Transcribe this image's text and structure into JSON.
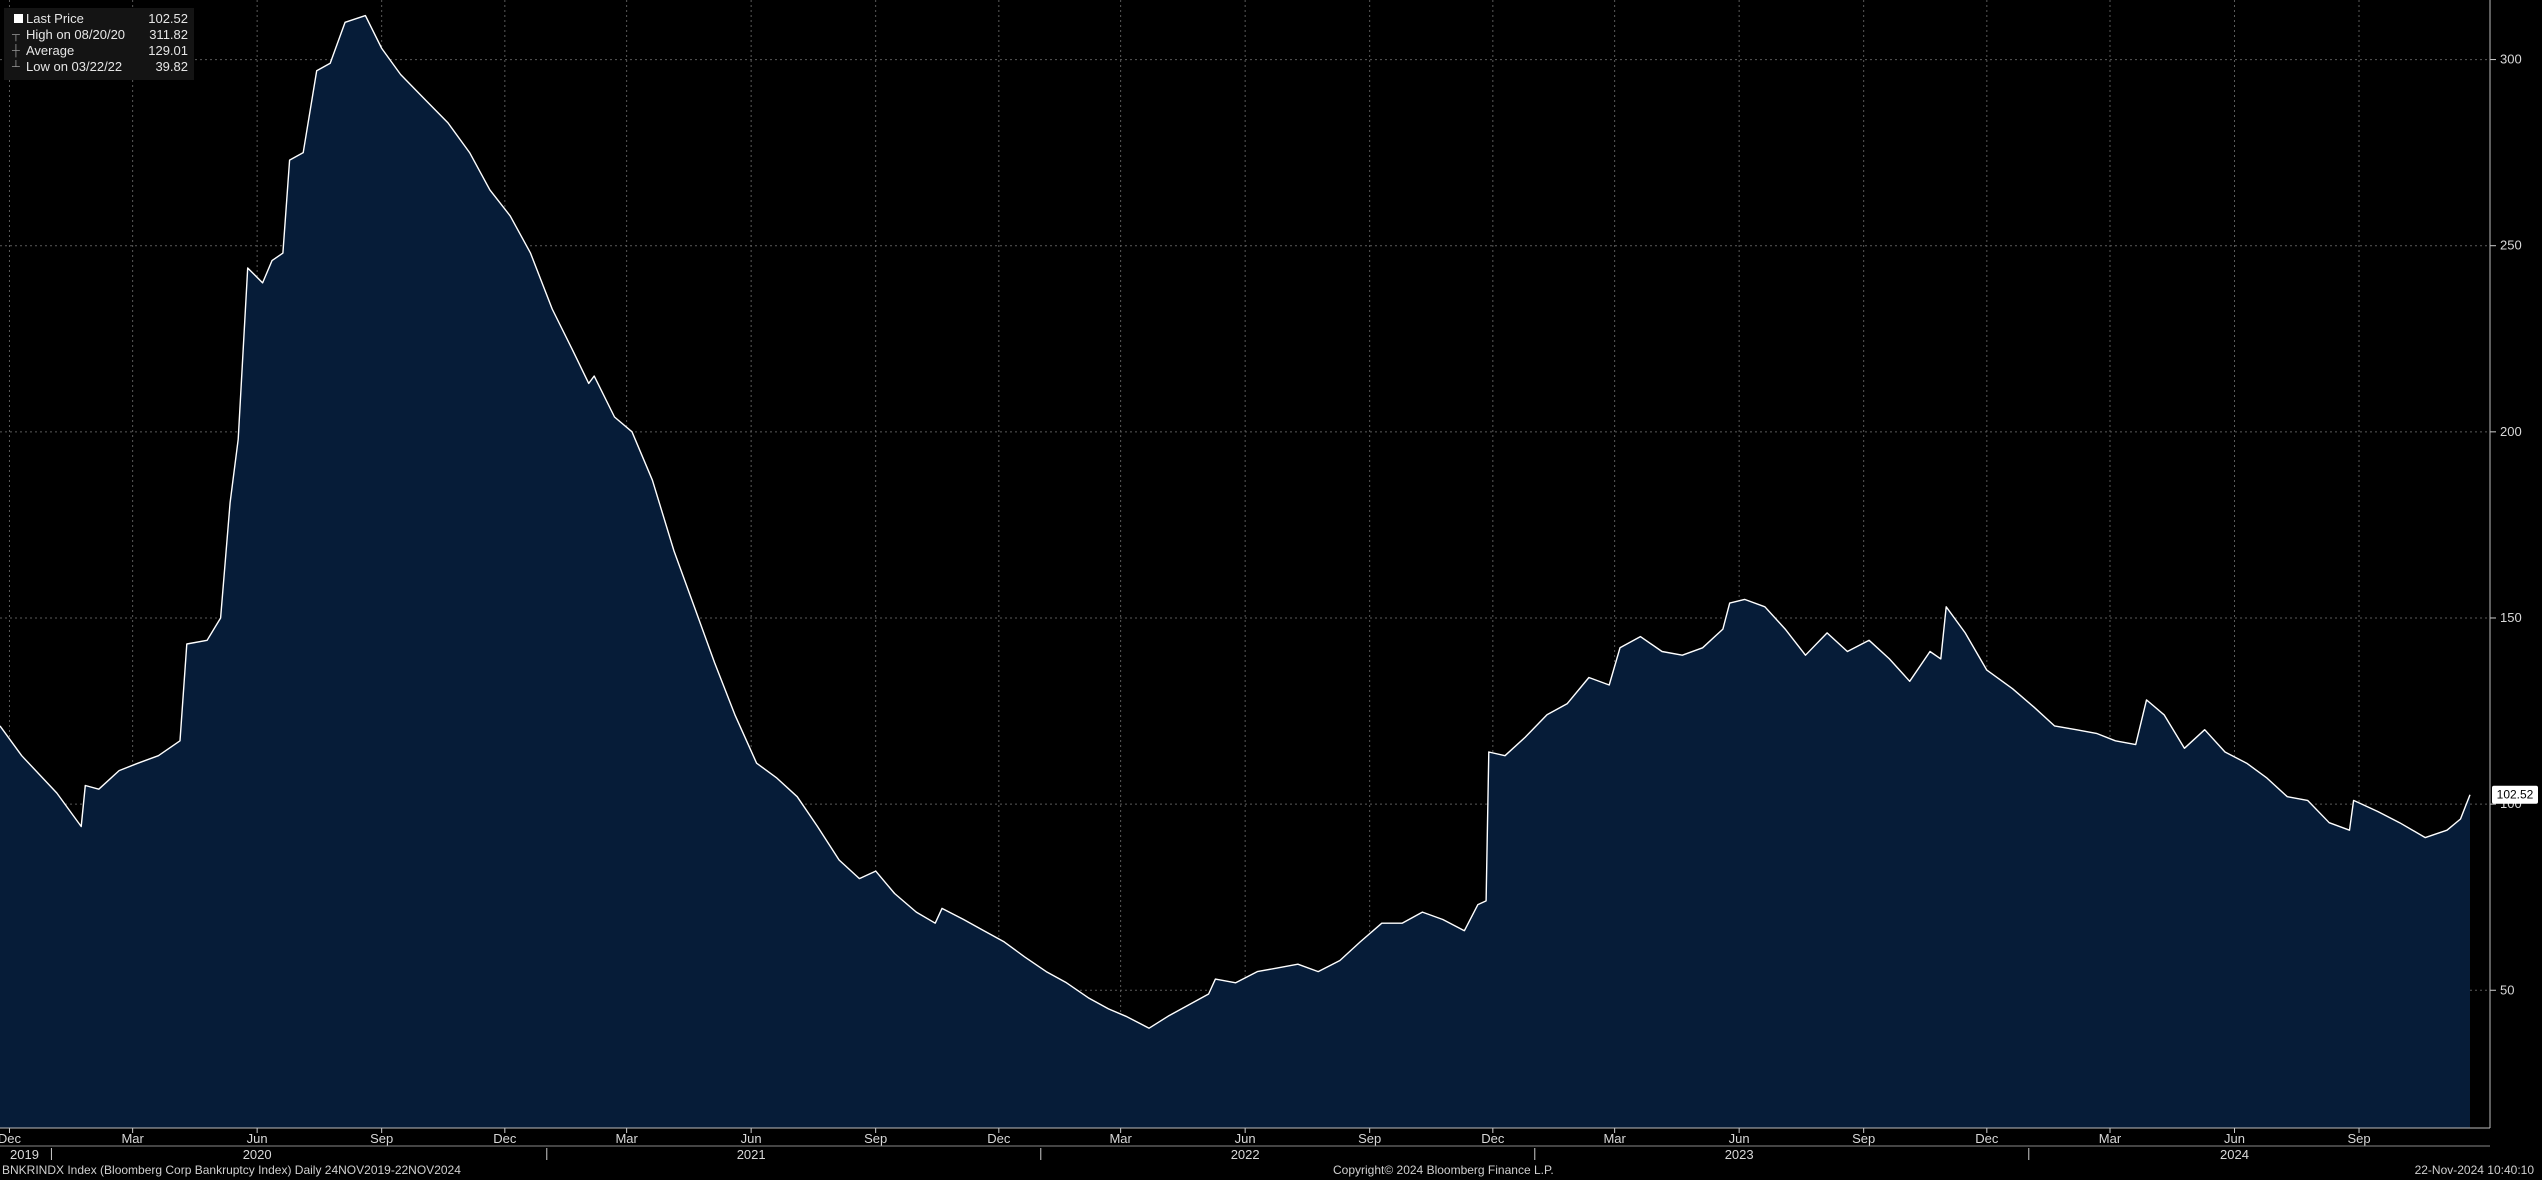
{
  "legend": {
    "last_label": "Last Price",
    "last_value": "102.52",
    "high_label": "High on 08/20/20",
    "high_value": "311.82",
    "avg_label": "Average",
    "avg_value": "129.01",
    "low_label": "Low on 03/22/22",
    "low_value": "39.82"
  },
  "footer": {
    "left": "BNKRINDX Index (Bloomberg Corp Bankruptcy Index)  Daily 24NOV2019-22NOV2024",
    "center": "Copyright© 2024 Bloomberg Finance L.P.",
    "right": "22-Nov-2024 10:40:10"
  },
  "colors": {
    "background": "#000000",
    "fill": "#061c38",
    "line": "#ffffff",
    "grid": "#5a5a5a"
  },
  "chart_data": {
    "type": "area",
    "title": "",
    "xlabel": "",
    "ylabel": "",
    "ylim": [
      13,
      316
    ],
    "y_axis_position": "right",
    "yticks": [
      50,
      100,
      150,
      200,
      250,
      300
    ],
    "last_value_label": "102.52",
    "grid": true,
    "legend_position": "top-left",
    "x_range": [
      "2019-11-24",
      "2024-11-22"
    ],
    "month_ticks": [
      {
        "date": "2019-12-01",
        "label": "Dec"
      },
      {
        "date": "2020-03-01",
        "label": "Mar"
      },
      {
        "date": "2020-06-01",
        "label": "Jun"
      },
      {
        "date": "2020-09-01",
        "label": "Sep"
      },
      {
        "date": "2020-12-01",
        "label": "Dec"
      },
      {
        "date": "2021-03-01",
        "label": "Mar"
      },
      {
        "date": "2021-06-01",
        "label": "Jun"
      },
      {
        "date": "2021-09-01",
        "label": "Sep"
      },
      {
        "date": "2021-12-01",
        "label": "Dec"
      },
      {
        "date": "2022-03-01",
        "label": "Mar"
      },
      {
        "date": "2022-06-01",
        "label": "Jun"
      },
      {
        "date": "2022-09-01",
        "label": "Sep"
      },
      {
        "date": "2022-12-01",
        "label": "Dec"
      },
      {
        "date": "2023-03-01",
        "label": "Mar"
      },
      {
        "date": "2023-06-01",
        "label": "Jun"
      },
      {
        "date": "2023-09-01",
        "label": "Sep"
      },
      {
        "date": "2023-12-01",
        "label": "Dec"
      },
      {
        "date": "2024-03-01",
        "label": "Mar"
      },
      {
        "date": "2024-06-01",
        "label": "Jun"
      },
      {
        "date": "2024-09-01",
        "label": "Sep"
      }
    ],
    "year_ticks": [
      {
        "date": "2019-12-01",
        "label": "2019"
      },
      {
        "date": "2020-06-01",
        "label": "2020"
      },
      {
        "date": "2021-06-01",
        "label": "2021"
      },
      {
        "date": "2022-06-01",
        "label": "2022"
      },
      {
        "date": "2023-06-01",
        "label": "2023"
      },
      {
        "date": "2024-06-01",
        "label": "2024"
      }
    ],
    "series": [
      {
        "name": "Last Price",
        "points": [
          [
            "2019-11-24",
            121
          ],
          [
            "2019-12-10",
            113
          ],
          [
            "2020-01-05",
            103
          ],
          [
            "2020-01-23",
            94
          ],
          [
            "2020-01-26",
            105
          ],
          [
            "2020-02-05",
            104
          ],
          [
            "2020-02-20",
            109
          ],
          [
            "2020-03-05",
            111
          ],
          [
            "2020-03-20",
            113
          ],
          [
            "2020-04-05",
            117
          ],
          [
            "2020-04-10",
            143
          ],
          [
            "2020-04-25",
            144
          ],
          [
            "2020-05-05",
            150
          ],
          [
            "2020-05-12",
            181
          ],
          [
            "2020-05-18",
            198
          ],
          [
            "2020-05-25",
            244
          ],
          [
            "2020-06-05",
            240
          ],
          [
            "2020-06-12",
            246
          ],
          [
            "2020-06-20",
            248
          ],
          [
            "2020-06-25",
            273
          ],
          [
            "2020-07-05",
            275
          ],
          [
            "2020-07-15",
            297
          ],
          [
            "2020-07-25",
            299
          ],
          [
            "2020-08-05",
            310
          ],
          [
            "2020-08-20",
            311.82
          ],
          [
            "2020-09-01",
            303
          ],
          [
            "2020-09-15",
            296
          ],
          [
            "2020-10-01",
            290
          ],
          [
            "2020-10-20",
            283
          ],
          [
            "2020-11-05",
            275
          ],
          [
            "2020-11-20",
            265
          ],
          [
            "2020-12-05",
            258
          ],
          [
            "2020-12-20",
            248
          ],
          [
            "2021-01-05",
            233
          ],
          [
            "2021-01-20",
            222
          ],
          [
            "2021-02-01",
            213
          ],
          [
            "2021-02-05",
            215
          ],
          [
            "2021-02-20",
            204
          ],
          [
            "2021-03-05",
            200
          ],
          [
            "2021-03-20",
            187
          ],
          [
            "2021-04-05",
            168
          ],
          [
            "2021-04-20",
            153
          ],
          [
            "2021-05-05",
            138
          ],
          [
            "2021-05-20",
            124
          ],
          [
            "2021-06-05",
            111
          ],
          [
            "2021-06-20",
            107
          ],
          [
            "2021-07-05",
            102
          ],
          [
            "2021-07-20",
            94
          ],
          [
            "2021-08-05",
            85
          ],
          [
            "2021-08-20",
            80
          ],
          [
            "2021-09-01",
            82
          ],
          [
            "2021-09-15",
            76
          ],
          [
            "2021-10-01",
            71
          ],
          [
            "2021-10-15",
            68
          ],
          [
            "2021-10-20",
            72
          ],
          [
            "2021-11-05",
            69
          ],
          [
            "2021-11-20",
            66
          ],
          [
            "2021-12-05",
            63
          ],
          [
            "2021-12-20",
            59
          ],
          [
            "2022-01-05",
            55
          ],
          [
            "2022-01-20",
            52
          ],
          [
            "2022-02-05",
            48
          ],
          [
            "2022-02-20",
            45
          ],
          [
            "2022-03-05",
            43
          ],
          [
            "2022-03-22",
            39.82
          ],
          [
            "2022-04-05",
            43
          ],
          [
            "2022-04-20",
            46
          ],
          [
            "2022-05-05",
            49
          ],
          [
            "2022-05-10",
            53
          ],
          [
            "2022-05-25",
            52
          ],
          [
            "2022-06-10",
            55
          ],
          [
            "2022-06-25",
            56
          ],
          [
            "2022-07-10",
            57
          ],
          [
            "2022-07-25",
            55
          ],
          [
            "2022-08-10",
            58
          ],
          [
            "2022-08-25",
            63
          ],
          [
            "2022-09-10",
            68
          ],
          [
            "2022-09-25",
            68
          ],
          [
            "2022-10-10",
            71
          ],
          [
            "2022-10-25",
            69
          ],
          [
            "2022-11-10",
            66
          ],
          [
            "2022-11-20",
            73
          ],
          [
            "2022-11-26",
            74
          ],
          [
            "2022-11-28",
            114
          ],
          [
            "2022-12-10",
            113
          ],
          [
            "2022-12-25",
            118
          ],
          [
            "2023-01-10",
            124
          ],
          [
            "2023-01-25",
            127
          ],
          [
            "2023-02-10",
            134
          ],
          [
            "2023-02-25",
            132
          ],
          [
            "2023-03-05",
            142
          ],
          [
            "2023-03-20",
            145
          ],
          [
            "2023-04-05",
            141
          ],
          [
            "2023-04-20",
            140
          ],
          [
            "2023-05-05",
            142
          ],
          [
            "2023-05-20",
            147
          ],
          [
            "2023-05-25",
            154
          ],
          [
            "2023-06-05",
            155
          ],
          [
            "2023-06-20",
            153
          ],
          [
            "2023-07-05",
            147
          ],
          [
            "2023-07-20",
            140
          ],
          [
            "2023-08-05",
            146
          ],
          [
            "2023-08-20",
            141
          ],
          [
            "2023-09-05",
            144
          ],
          [
            "2023-09-20",
            139
          ],
          [
            "2023-10-05",
            133
          ],
          [
            "2023-10-20",
            141
          ],
          [
            "2023-10-28",
            139
          ],
          [
            "2023-11-01",
            153
          ],
          [
            "2023-11-15",
            146
          ],
          [
            "2023-12-01",
            136
          ],
          [
            "2023-12-20",
            131
          ],
          [
            "2024-01-05",
            126
          ],
          [
            "2024-01-20",
            121
          ],
          [
            "2024-02-05",
            120
          ],
          [
            "2024-02-20",
            119
          ],
          [
            "2024-03-05",
            117
          ],
          [
            "2024-03-20",
            116
          ],
          [
            "2024-03-28",
            128
          ],
          [
            "2024-04-10",
            124
          ],
          [
            "2024-04-25",
            115
          ],
          [
            "2024-05-10",
            120
          ],
          [
            "2024-05-25",
            114
          ],
          [
            "2024-06-10",
            111
          ],
          [
            "2024-06-25",
            107
          ],
          [
            "2024-07-10",
            102
          ],
          [
            "2024-07-25",
            101
          ],
          [
            "2024-08-10",
            95
          ],
          [
            "2024-08-25",
            93
          ],
          [
            "2024-08-28",
            101
          ],
          [
            "2024-09-15",
            98
          ],
          [
            "2024-10-01",
            95
          ],
          [
            "2024-10-20",
            91
          ],
          [
            "2024-11-05",
            93
          ],
          [
            "2024-11-15",
            96
          ],
          [
            "2024-11-22",
            102.52
          ]
        ]
      }
    ]
  }
}
